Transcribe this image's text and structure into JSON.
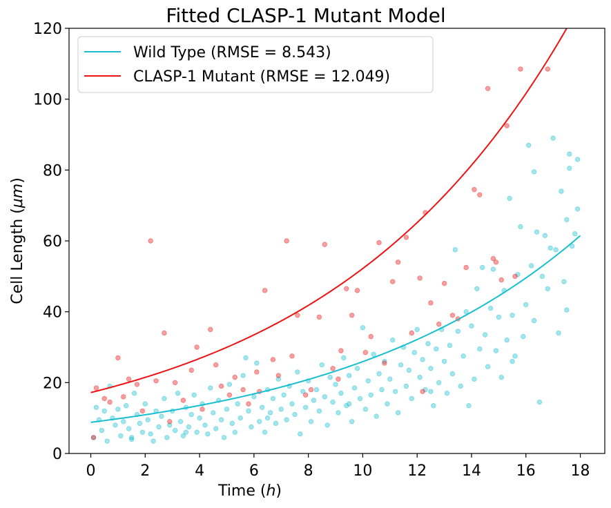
{
  "chart_data": {
    "type": "scatter",
    "title": "Fitted CLASP-1 Mutant Model",
    "xlabel_prefix": "Time (",
    "xlabel_italic": "h",
    "xlabel_suffix": ")",
    "ylabel_prefix": "Cell Length (",
    "ylabel_italic": "μm",
    "ylabel_suffix": ")",
    "xlim": [
      -0.8,
      18.9
    ],
    "ylim": [
      0,
      120
    ],
    "xticks": [
      0,
      2,
      4,
      6,
      8,
      10,
      12,
      14,
      16,
      18
    ],
    "yticks": [
      0,
      20,
      40,
      60,
      80,
      100,
      120
    ],
    "legend_position": "top-left",
    "series": [
      {
        "name": "Wild Type (RMSE = 8.543)",
        "color": "#17becf",
        "fit": {
          "model": "exponential",
          "a": 8.8,
          "b": 0.108
        },
        "points": [
          [
            0.1,
            4.5
          ],
          [
            0.2,
            13.0
          ],
          [
            0.3,
            9.5
          ],
          [
            0.4,
            6.5
          ],
          [
            0.5,
            12.0
          ],
          [
            0.6,
            3.5
          ],
          [
            0.7,
            19.0
          ],
          [
            0.8,
            10.0
          ],
          [
            0.9,
            8.0
          ],
          [
            1.0,
            12.5
          ],
          [
            1.1,
            5.0
          ],
          [
            1.2,
            9.0
          ],
          [
            1.3,
            13.5
          ],
          [
            1.4,
            7.0
          ],
          [
            1.5,
            4.5
          ],
          [
            1.6,
            17.0
          ],
          [
            1.7,
            11.0
          ],
          [
            1.8,
            8.5
          ],
          [
            1.9,
            6.0
          ],
          [
            2.0,
            14.0
          ],
          [
            2.1,
            9.5
          ],
          [
            2.2,
            5.5
          ],
          [
            2.3,
            3.5
          ],
          [
            2.4,
            12.0
          ],
          [
            2.5,
            7.5
          ],
          [
            2.6,
            10.5
          ],
          [
            2.7,
            15.5
          ],
          [
            2.8,
            4.5
          ],
          [
            2.9,
            8.0
          ],
          [
            3.0,
            12.0
          ],
          [
            3.1,
            6.5
          ],
          [
            3.2,
            17.0
          ],
          [
            3.3,
            9.0
          ],
          [
            3.4,
            5.0
          ],
          [
            3.5,
            13.0
          ],
          [
            3.6,
            7.5
          ],
          [
            3.7,
            11.0
          ],
          [
            3.8,
            16.5
          ],
          [
            3.9,
            6.0
          ],
          [
            4.0,
            10.0
          ],
          [
            4.1,
            14.0
          ],
          [
            4.2,
            8.0
          ],
          [
            4.3,
            5.5
          ],
          [
            4.4,
            18.5
          ],
          [
            4.5,
            11.5
          ],
          [
            4.6,
            7.0
          ],
          [
            4.7,
            15.0
          ],
          [
            4.8,
            9.5
          ],
          [
            4.9,
            4.5
          ],
          [
            5.0,
            12.5
          ],
          [
            5.1,
            19.5
          ],
          [
            5.2,
            8.5
          ],
          [
            5.3,
            6.0
          ],
          [
            5.4,
            14.0
          ],
          [
            5.5,
            10.0
          ],
          [
            5.6,
            22.0
          ],
          [
            5.7,
            27.0
          ],
          [
            5.8,
            12.0
          ],
          [
            5.9,
            7.5
          ],
          [
            6.0,
            16.0
          ],
          [
            6.1,
            25.5
          ],
          [
            6.2,
            9.0
          ],
          [
            6.3,
            13.0
          ],
          [
            6.4,
            6.0
          ],
          [
            6.5,
            18.0
          ],
          [
            6.6,
            11.5
          ],
          [
            6.7,
            15.5
          ],
          [
            6.8,
            8.5
          ],
          [
            6.9,
            21.0
          ],
          [
            7.0,
            12.5
          ],
          [
            7.1,
            16.5
          ],
          [
            7.2,
            9.5
          ],
          [
            7.3,
            19.0
          ],
          [
            7.4,
            14.0
          ],
          [
            7.5,
            11.0
          ],
          [
            7.6,
            23.0
          ],
          [
            7.7,
            5.5
          ],
          [
            7.8,
            17.5
          ],
          [
            7.9,
            13.0
          ],
          [
            8.0,
            20.5
          ],
          [
            8.1,
            9.0
          ],
          [
            8.2,
            15.0
          ],
          [
            8.3,
            18.0
          ],
          [
            8.4,
            12.0
          ],
          [
            8.5,
            25.0
          ],
          [
            8.6,
            16.0
          ],
          [
            8.7,
            8.0
          ],
          [
            8.8,
            21.5
          ],
          [
            8.9,
            14.5
          ],
          [
            9.0,
            19.5
          ],
          [
            9.1,
            11.5
          ],
          [
            9.2,
            17.0
          ],
          [
            9.3,
            27.0
          ],
          [
            9.4,
            13.5
          ],
          [
            9.5,
            22.0
          ],
          [
            9.6,
            9.0
          ],
          [
            9.7,
            18.5
          ],
          [
            9.8,
            24.0
          ],
          [
            9.9,
            15.5
          ],
          [
            10.0,
            35.5
          ],
          [
            10.1,
            12.5
          ],
          [
            10.2,
            20.5
          ],
          [
            10.3,
            16.5
          ],
          [
            10.4,
            28.0
          ],
          [
            10.5,
            10.5
          ],
          [
            10.6,
            22.5
          ],
          [
            10.7,
            18.0
          ],
          [
            10.8,
            26.0
          ],
          [
            10.9,
            14.0
          ],
          [
            11.0,
            21.0
          ],
          [
            11.1,
            32.0
          ],
          [
            11.2,
            17.5
          ],
          [
            11.3,
            11.5
          ],
          [
            11.4,
            25.0
          ],
          [
            11.5,
            30.0
          ],
          [
            11.6,
            19.0
          ],
          [
            11.7,
            23.5
          ],
          [
            11.8,
            15.5
          ],
          [
            11.9,
            28.5
          ],
          [
            12.0,
            35.0
          ],
          [
            12.1,
            21.5
          ],
          [
            12.2,
            26.5
          ],
          [
            12.3,
            18.0
          ],
          [
            12.4,
            31.0
          ],
          [
            12.5,
            24.0
          ],
          [
            12.6,
            13.5
          ],
          [
            12.7,
            29.5
          ],
          [
            12.8,
            20.0
          ],
          [
            12.9,
            35.0
          ],
          [
            13.0,
            26.0
          ],
          [
            13.1,
            17.0
          ],
          [
            13.2,
            30.5
          ],
          [
            13.3,
            22.5
          ],
          [
            13.4,
            57.5
          ],
          [
            13.5,
            34.5
          ],
          [
            13.6,
            19.0
          ],
          [
            13.7,
            27.5
          ],
          [
            13.8,
            40.0
          ],
          [
            13.9,
            13.5
          ],
          [
            14.0,
            36.0
          ],
          [
            14.1,
            21.0
          ],
          [
            14.2,
            46.5
          ],
          [
            14.3,
            29.5
          ],
          [
            14.4,
            52.5
          ],
          [
            14.5,
            33.5
          ],
          [
            14.6,
            24.5
          ],
          [
            14.7,
            41.0
          ],
          [
            14.8,
            52.0
          ],
          [
            14.9,
            29.0
          ],
          [
            15.0,
            38.5
          ],
          [
            15.1,
            21.5
          ],
          [
            15.2,
            46.0
          ],
          [
            15.3,
            32.0
          ],
          [
            15.4,
            72.0
          ],
          [
            15.5,
            39.0
          ],
          [
            15.6,
            27.5
          ],
          [
            15.7,
            50.5
          ],
          [
            15.8,
            64.0
          ],
          [
            15.9,
            33.0
          ],
          [
            16.0,
            42.0
          ],
          [
            16.1,
            87.0
          ],
          [
            16.2,
            53.0
          ],
          [
            16.3,
            37.5
          ],
          [
            16.4,
            62.5
          ],
          [
            16.5,
            14.5
          ],
          [
            16.6,
            50.0
          ],
          [
            16.7,
            61.5
          ],
          [
            16.8,
            46.5
          ],
          [
            16.9,
            58.0
          ],
          [
            17.0,
            89.0
          ],
          [
            17.1,
            57.5
          ],
          [
            17.2,
            34.0
          ],
          [
            17.3,
            74.0
          ],
          [
            17.4,
            48.5
          ],
          [
            17.5,
            66.0
          ],
          [
            17.6,
            80.5
          ],
          [
            17.7,
            58.5
          ],
          [
            17.8,
            62.0
          ],
          [
            17.9,
            69.0
          ],
          [
            1.5,
            4.0
          ],
          [
            3.5,
            6.0
          ],
          [
            6.5,
            10.0
          ],
          [
            9.5,
            14.0
          ],
          [
            12.5,
            17.5
          ],
          [
            15.5,
            26.0
          ],
          [
            17.5,
            40.5
          ],
          [
            17.9,
            83.0
          ],
          [
            17.6,
            84.5
          ],
          [
            16.3,
            79.5
          ]
        ]
      },
      {
        "name": "CLASP-1 Mutant (RMSE = 12.049)",
        "color": "#ee1111",
        "fit": {
          "model": "exponential",
          "a": 17.2,
          "b": 0.111
        },
        "points": [
          [
            0.1,
            4.5
          ],
          [
            0.2,
            18.5
          ],
          [
            0.5,
            15.5
          ],
          [
            0.7,
            14.5
          ],
          [
            1.0,
            27.0
          ],
          [
            1.2,
            16.0
          ],
          [
            1.4,
            21.0
          ],
          [
            1.7,
            19.5
          ],
          [
            1.9,
            12.0
          ],
          [
            2.2,
            60.0
          ],
          [
            2.4,
            20.5
          ],
          [
            2.7,
            34.0
          ],
          [
            2.9,
            9.0
          ],
          [
            3.1,
            20.0
          ],
          [
            3.4,
            15.0
          ],
          [
            3.7,
            23.5
          ],
          [
            3.9,
            30.0
          ],
          [
            4.1,
            12.5
          ],
          [
            4.4,
            35.0
          ],
          [
            4.6,
            25.0
          ],
          [
            4.8,
            19.0
          ],
          [
            5.1,
            16.5
          ],
          [
            5.3,
            21.5
          ],
          [
            5.6,
            18.0
          ],
          [
            5.8,
            14.0
          ],
          [
            6.1,
            23.0
          ],
          [
            6.4,
            46.0
          ],
          [
            6.7,
            26.5
          ],
          [
            6.9,
            22.0
          ],
          [
            7.2,
            60.0
          ],
          [
            7.4,
            27.5
          ],
          [
            7.6,
            39.0
          ],
          [
            7.9,
            16.5
          ],
          [
            8.1,
            18.0
          ],
          [
            8.4,
            38.5
          ],
          [
            8.6,
            59.0
          ],
          [
            8.9,
            24.0
          ],
          [
            9.1,
            21.0
          ],
          [
            9.4,
            46.5
          ],
          [
            9.6,
            39.0
          ],
          [
            9.8,
            46.0
          ],
          [
            10.1,
            28.5
          ],
          [
            10.3,
            33.0
          ],
          [
            10.6,
            59.5
          ],
          [
            10.8,
            25.5
          ],
          [
            11.1,
            48.5
          ],
          [
            11.3,
            54.0
          ],
          [
            11.6,
            61.0
          ],
          [
            11.8,
            34.0
          ],
          [
            12.1,
            49.5
          ],
          [
            12.3,
            68.0
          ],
          [
            12.5,
            42.5
          ],
          [
            12.8,
            36.5
          ],
          [
            13.0,
            48.0
          ],
          [
            13.3,
            39.0
          ],
          [
            13.5,
            38.0
          ],
          [
            13.8,
            52.5
          ],
          [
            14.1,
            74.5
          ],
          [
            14.3,
            73.0
          ],
          [
            14.6,
            103.0
          ],
          [
            14.8,
            55.0
          ],
          [
            15.1,
            49.0
          ],
          [
            15.3,
            92.5
          ],
          [
            15.6,
            50.0
          ],
          [
            15.8,
            108.5
          ],
          [
            16.8,
            108.5
          ],
          [
            14.9,
            54.0
          ],
          [
            12.2,
            17.5
          ],
          [
            9.2,
            29.0
          ],
          [
            6.2,
            17.5
          ]
        ]
      }
    ]
  }
}
